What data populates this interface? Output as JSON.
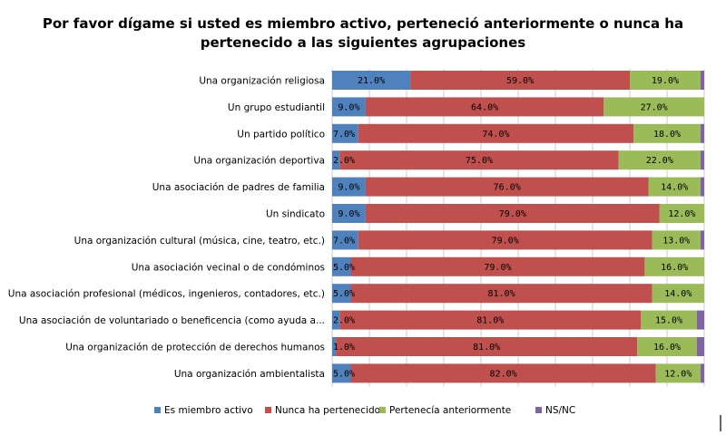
{
  "chart_data": {
    "type": "bar",
    "orientation": "horizontal",
    "stacked": true,
    "percent_stacked": true,
    "title_lines": [
      "Por favor dígame si usted es miembro activo, perteneció anteriormente o nunca ha",
      "pertenecido a las siguientes agrupaciones"
    ],
    "categories": [
      "Una organización religiosa",
      "Un grupo estudiantil",
      "Un partido político",
      "Una organización deportiva",
      "Una asociación de padres de familia",
      "Un sindicato",
      "Una organización cultural (música, cine, teatro, etc.)",
      "Una asociación vecinal o de condóminos",
      "Una asociación profesional (médicos, ingenieros, contadores, etc.)",
      "Una asociación de voluntariado o beneficencia (como ayuda a...",
      "Una organización de protección de derechos humanos",
      "Una organización ambientalista"
    ],
    "series": [
      {
        "name": "Es miembro activo",
        "color": "#4F81BD",
        "values": [
          21,
          9,
          7,
          2,
          9,
          9,
          7,
          5,
          5,
          2,
          1,
          5
        ],
        "labels": [
          "21.0%",
          "9.0%",
          "7.0%",
          "2.0%",
          "9.0%",
          "9.0%",
          "7.0%",
          "5.0%",
          "5.0%",
          "2.0%",
          "1.0%",
          "5.0%"
        ]
      },
      {
        "name": "Nunca ha pertenecido",
        "color": "#C0504D",
        "values": [
          59,
          64,
          74,
          75,
          76,
          79,
          79,
          79,
          81,
          81,
          81,
          82
        ],
        "labels": [
          "59.0%",
          "64.0%",
          "74.0%",
          "75.0%",
          "76.0%",
          "79.0%",
          "79.0%",
          "79.0%",
          "81.0%",
          "81.0%",
          "81.0%",
          "82.0%"
        ]
      },
      {
        "name": "Pertenecía anteriormente",
        "color": "#9BBB59",
        "values": [
          19,
          27,
          18,
          22,
          14,
          12,
          13,
          16,
          14,
          15,
          16,
          12
        ],
        "labels": [
          "19.0%",
          "27.0%",
          "18.0%",
          "22.0%",
          "14.0%",
          "12.0%",
          "13.0%",
          "16.0%",
          "14.0%",
          "15.0%",
          "16.0%",
          "12.0%"
        ]
      },
      {
        "name": "NS/NC",
        "color": "#8064A2",
        "values": [
          1,
          0,
          1,
          1,
          1,
          0,
          1,
          0,
          0,
          2,
          2,
          1
        ],
        "labels": []
      }
    ],
    "xlim": [
      0,
      100
    ],
    "grid": true,
    "legend": "bottom"
  }
}
